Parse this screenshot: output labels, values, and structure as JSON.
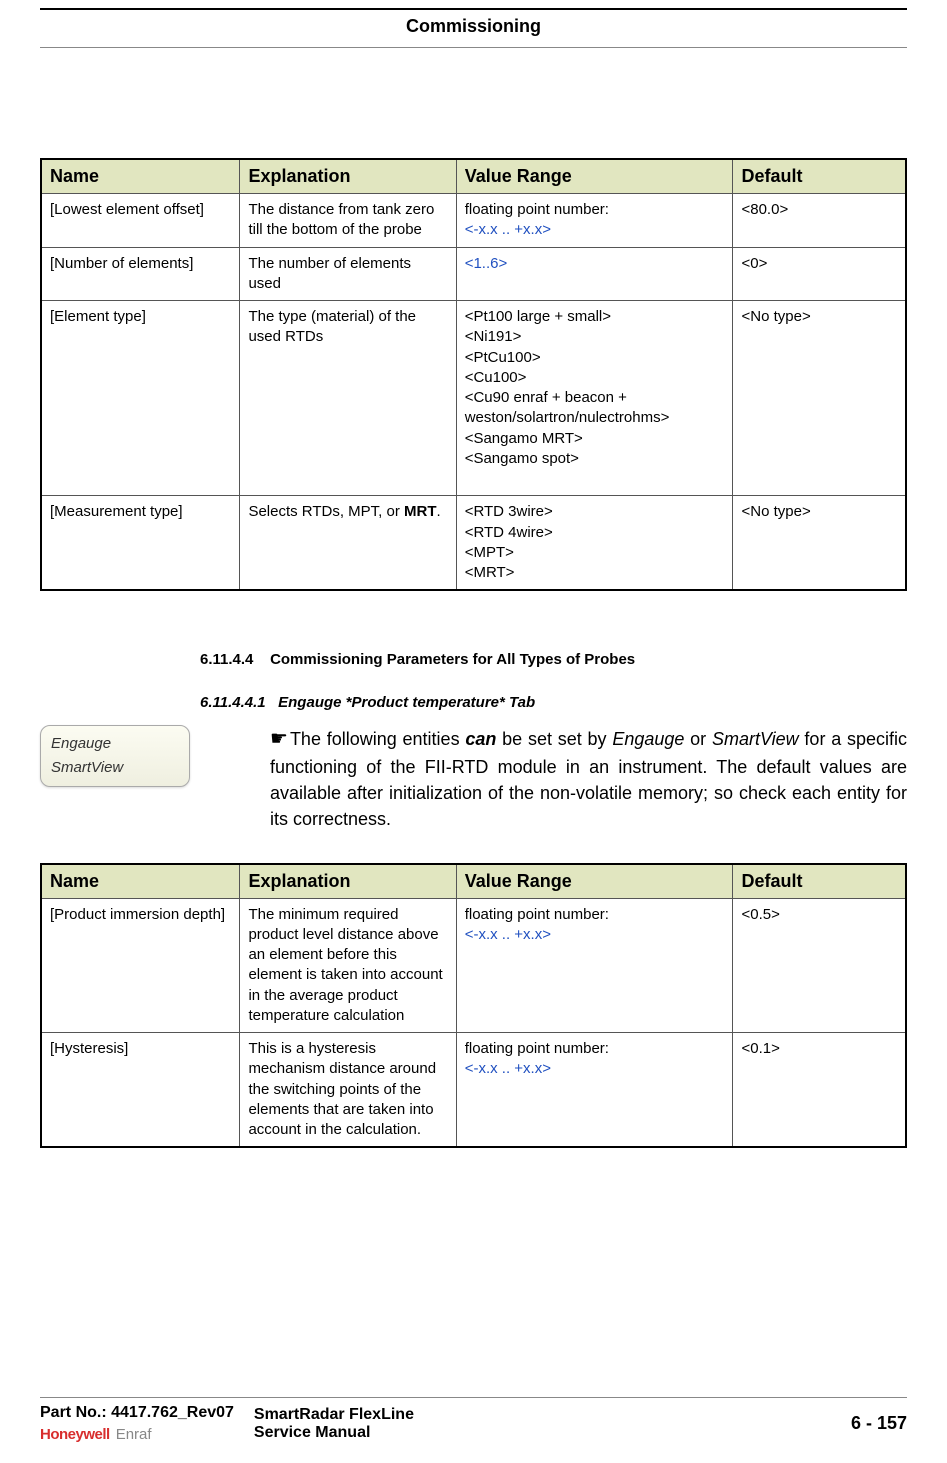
{
  "header": {
    "title": "Commissioning"
  },
  "table1": {
    "headers": {
      "name": "Name",
      "explanation": "Explanation",
      "range": "Value Range",
      "default": "Default"
    },
    "rows": [
      {
        "name": "[Lowest element offset]",
        "explanation": "The distance from tank zero till the bottom of the probe",
        "range_prefix": "floating point number:",
        "range_blue": "<-x.x .. +x.x>",
        "default": "<80.0>",
        "name_blue": true
      },
      {
        "name": "[Number of elements]",
        "explanation": "The number of elements used",
        "range_blue": "<1..6>",
        "default": "<0>",
        "name_blue": false
      },
      {
        "name": "[Element type]",
        "explanation": "The type (material) of the used RTDs",
        "range_lines": [
          "<Pt100 large + small>",
          "<Ni191>",
          "<PtCu100>",
          "<Cu100>",
          "<Cu90 enraf + beacon + weston/solartron/nulectrohms>",
          "<Sangamo MRT>",
          "<Sangamo spot>"
        ],
        "default": "<No type>",
        "name_blue": true
      },
      {
        "name": "[Measurement type]",
        "explanation_pre": "Selects RTDs, MPT, or ",
        "explanation_bold": "MRT",
        "explanation_post": ".",
        "range_lines": [
          "<RTD 3wire>",
          "<RTD 4wire>",
          "<MPT>",
          "<MRT>"
        ],
        "default": "<No type>",
        "name_blue": true
      }
    ]
  },
  "section": {
    "num": "6.11.4.4",
    "title": "Commissioning Parameters for All Types of Probes",
    "sub_num": "6.11.4.4.1",
    "sub_title": "Engauge *Product temperature* Tab"
  },
  "callout": {
    "line1": "Engauge",
    "line2": "SmartView"
  },
  "paragraph": {
    "pre": "The following entities ",
    "bold_italic": "can",
    "mid": " be set set by ",
    "italic1": "Engauge",
    "mid2": " or ",
    "italic2": "SmartView",
    "rest": " for a specific functioning of the FII-RTD module in an instrument. The default values are available after initialization of the non-volatile memory; so check each entity for its correctness."
  },
  "table2": {
    "headers": {
      "name": "Name",
      "explanation": "Explanation",
      "range": "Value Range",
      "default": "Default"
    },
    "rows": [
      {
        "name": "[Product immersion depth]",
        "explanation": "The minimum required product level distance above an element before this element is taken into account in the average product temperature calculation",
        "range_prefix": "floating point number:",
        "range_blue": "<-x.x .. +x.x>",
        "default": "<0.5>"
      },
      {
        "name": "[Hysteresis]",
        "explanation": "This is a hysteresis mechanism distance around the switching points of the elements that are taken into account in the calculation.",
        "range_prefix": "floating point number:",
        "range_blue": "<-x.x .. +x.x>",
        "default": "<0.1>"
      }
    ]
  },
  "footer": {
    "part_label": "Part No.:",
    "part_value": "4417.762_Rev07",
    "center_line1": "SmartRadar FlexLine",
    "center_line2": "Service Manual",
    "logo1": "Honeywell",
    "logo2": "Enraf",
    "page": "6 - 157"
  }
}
